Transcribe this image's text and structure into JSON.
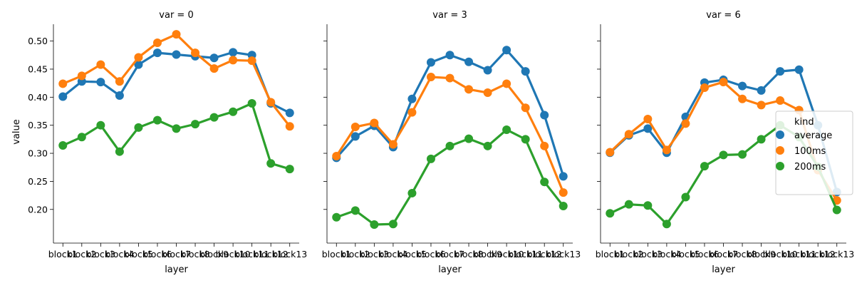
{
  "chart_data": {
    "type": "line",
    "ylabel": "value",
    "xlabel": "layer",
    "ylim": [
      0.14,
      0.53
    ],
    "yticks": [
      0.2,
      0.25,
      0.3,
      0.35,
      0.4,
      0.45,
      0.5
    ],
    "ytick_labels": [
      "0.20",
      "0.25",
      "0.30",
      "0.35",
      "0.40",
      "0.45",
      "0.50"
    ],
    "categories": [
      "block1",
      "block2",
      "block3",
      "block4",
      "block5",
      "block6",
      "block7",
      "block8",
      "block9",
      "block10",
      "block11",
      "block12",
      "block13"
    ],
    "legend": {
      "title": "kind",
      "placement": "right"
    },
    "series_meta": [
      {
        "name": "average",
        "color": "#1f77b4"
      },
      {
        "name": "100ms",
        "color": "#ff7f0e"
      },
      {
        "name": "200ms",
        "color": "#2ca02c"
      }
    ],
    "panels": [
      {
        "title": "var = 0",
        "series": [
          {
            "name": "average",
            "values": [
              0.401,
              0.428,
              0.427,
              0.403,
              0.458,
              0.479,
              0.476,
              0.473,
              0.47,
              0.48,
              0.475,
              0.389,
              0.372
            ]
          },
          {
            "name": "100ms",
            "values": [
              0.424,
              0.438,
              0.458,
              0.428,
              0.471,
              0.497,
              0.512,
              0.479,
              0.451,
              0.466,
              0.465,
              0.391,
              0.348
            ]
          },
          {
            "name": "200ms",
            "values": [
              0.314,
              0.329,
              0.35,
              0.303,
              0.346,
              0.359,
              0.344,
              0.352,
              0.364,
              0.374,
              0.389,
              0.282,
              0.272
            ]
          }
        ]
      },
      {
        "title": "var = 3",
        "series": [
          {
            "name": "average",
            "values": [
              0.292,
              0.33,
              0.349,
              0.311,
              0.397,
              0.462,
              0.475,
              0.463,
              0.448,
              0.484,
              0.446,
              0.368,
              0.259
            ]
          },
          {
            "name": "100ms",
            "values": [
              0.295,
              0.347,
              0.354,
              0.316,
              0.373,
              0.436,
              0.434,
              0.414,
              0.408,
              0.424,
              0.381,
              0.313,
              0.23
            ]
          },
          {
            "name": "200ms",
            "values": [
              0.186,
              0.198,
              0.173,
              0.174,
              0.229,
              0.29,
              0.313,
              0.326,
              0.313,
              0.342,
              0.325,
              0.249,
              0.206
            ]
          }
        ]
      },
      {
        "title": "var = 6",
        "series": [
          {
            "name": "average",
            "values": [
              0.301,
              0.332,
              0.344,
              0.301,
              0.365,
              0.426,
              0.431,
              0.42,
              0.412,
              0.446,
              0.449,
              0.35,
              0.231
            ]
          },
          {
            "name": "100ms",
            "values": [
              0.302,
              0.334,
              0.361,
              0.306,
              0.353,
              0.417,
              0.427,
              0.397,
              0.386,
              0.394,
              0.377,
              0.27,
              0.216
            ]
          },
          {
            "name": "200ms",
            "values": [
              0.193,
              0.209,
              0.207,
              0.174,
              0.222,
              0.277,
              0.297,
              0.298,
              0.325,
              0.35,
              0.329,
              0.276,
              0.199
            ]
          }
        ]
      }
    ]
  }
}
